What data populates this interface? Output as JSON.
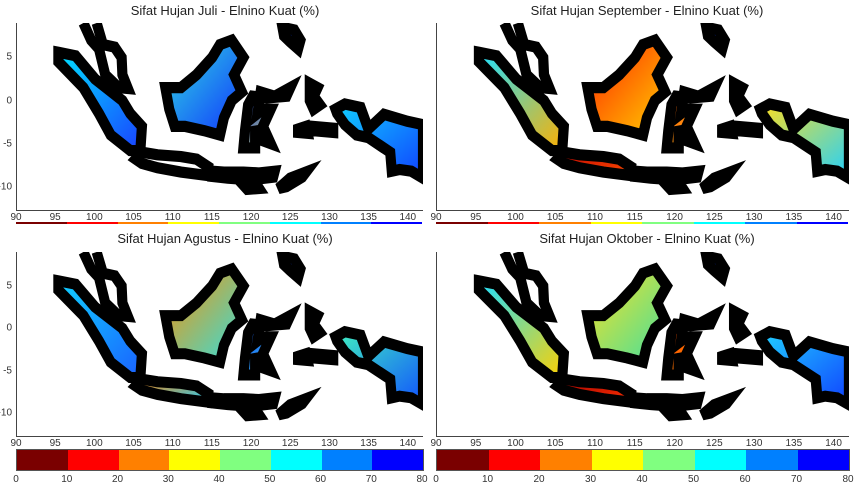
{
  "panels": [
    {
      "title": "Sifat Hujan Juli - Elnino Kuat (%)",
      "fills": {
        "sumatra": [
          "#00e0ff",
          "#1a40ff"
        ],
        "java": [
          "#ffffff",
          "#ffffff"
        ],
        "borneo": [
          "#30e0e0",
          "#1030ff"
        ],
        "sulawesi": [
          "#1040ff",
          "#e8e030"
        ],
        "papua": [
          "#10d0ff",
          "#1040ff"
        ],
        "nusa": [
          "#ffffff",
          "#ffffff"
        ],
        "maluku": [
          "#20c0ff",
          "#1040ff"
        ]
      }
    },
    {
      "title": "Sifat Hujan September - Elnino Kuat (%)",
      "fills": {
        "sumatra": [
          "#20e0ff",
          "#ffb000"
        ],
        "java": [
          "#c00000",
          "#ff5000"
        ],
        "borneo": [
          "#ff2000",
          "#ffd000"
        ],
        "sulawesi": [
          "#ff4000",
          "#ffe020"
        ],
        "papua": [
          "#ffe020",
          "#20d0ff"
        ],
        "nusa": [
          "#a00000",
          "#ff5000"
        ],
        "maluku": [
          "#ff8000",
          "#ffe020"
        ]
      }
    },
    {
      "title": "Sifat Hujan Agustus - Elnino Kuat (%)",
      "fills": {
        "sumatra": [
          "#10d0ff",
          "#1a60ff"
        ],
        "java": [
          "#ff8000",
          "#20d0ff"
        ],
        "borneo": [
          "#ff9000",
          "#30e0e0"
        ],
        "sulawesi": [
          "#1040ff",
          "#40e0e0"
        ],
        "papua": [
          "#40f0c0",
          "#1050ff"
        ],
        "nusa": [
          "#ff7000",
          "#20a0ff"
        ],
        "maluku": [
          "#20c0ff",
          "#ffd000"
        ]
      }
    },
    {
      "title": "Sifat Hujan Oktober - Elnino Kuat (%)",
      "fills": {
        "sumatra": [
          "#20e0ff",
          "#ffd000"
        ],
        "java": [
          "#a00000",
          "#ff3000"
        ],
        "borneo": [
          "#ffe020",
          "#40e0a0"
        ],
        "sulawesi": [
          "#ff3000",
          "#ffb000"
        ],
        "papua": [
          "#20d0ff",
          "#1040ff"
        ],
        "nusa": [
          "#c00000",
          "#ff6000"
        ],
        "maluku": [
          "#ff6000",
          "#ffd000"
        ]
      }
    }
  ],
  "x_ticks": [
    "90",
    "95",
    "100",
    "105",
    "110",
    "115",
    "120",
    "125",
    "130",
    "135",
    "140"
  ],
  "y_ticks": [
    "5",
    "0",
    "-5",
    "-10"
  ],
  "colorbar": {
    "labels": [
      "0",
      "10",
      "20",
      "30",
      "40",
      "50",
      "60",
      "70",
      "80"
    ],
    "colors": [
      "#7a0000",
      "#ff0000",
      "#ff8000",
      "#ffff00",
      "#80ff80",
      "#00ffff",
      "#0080ff",
      "#0000ff"
    ]
  }
}
